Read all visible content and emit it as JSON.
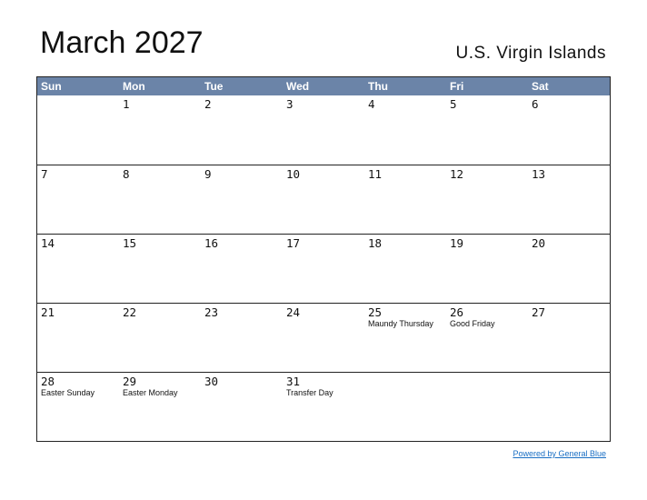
{
  "title": "March 2027",
  "region": "U.S. Virgin Islands",
  "colors": {
    "header_bg": "#6b84a8",
    "header_text": "#ffffff",
    "link": "#1a6fc4"
  },
  "weekdays": [
    "Sun",
    "Mon",
    "Tue",
    "Wed",
    "Thu",
    "Fri",
    "Sat"
  ],
  "weeks": [
    [
      {
        "day": "",
        "holiday": ""
      },
      {
        "day": "1",
        "holiday": ""
      },
      {
        "day": "2",
        "holiday": ""
      },
      {
        "day": "3",
        "holiday": ""
      },
      {
        "day": "4",
        "holiday": ""
      },
      {
        "day": "5",
        "holiday": ""
      },
      {
        "day": "6",
        "holiday": ""
      }
    ],
    [
      {
        "day": "7",
        "holiday": ""
      },
      {
        "day": "8",
        "holiday": ""
      },
      {
        "day": "9",
        "holiday": ""
      },
      {
        "day": "10",
        "holiday": ""
      },
      {
        "day": "11",
        "holiday": ""
      },
      {
        "day": "12",
        "holiday": ""
      },
      {
        "day": "13",
        "holiday": ""
      }
    ],
    [
      {
        "day": "14",
        "holiday": ""
      },
      {
        "day": "15",
        "holiday": ""
      },
      {
        "day": "16",
        "holiday": ""
      },
      {
        "day": "17",
        "holiday": ""
      },
      {
        "day": "18",
        "holiday": ""
      },
      {
        "day": "19",
        "holiday": ""
      },
      {
        "day": "20",
        "holiday": ""
      }
    ],
    [
      {
        "day": "21",
        "holiday": ""
      },
      {
        "day": "22",
        "holiday": ""
      },
      {
        "day": "23",
        "holiday": ""
      },
      {
        "day": "24",
        "holiday": ""
      },
      {
        "day": "25",
        "holiday": "Maundy Thursday"
      },
      {
        "day": "26",
        "holiday": "Good Friday"
      },
      {
        "day": "27",
        "holiday": ""
      }
    ],
    [
      {
        "day": "28",
        "holiday": "Easter Sunday"
      },
      {
        "day": "29",
        "holiday": "Easter Monday"
      },
      {
        "day": "30",
        "holiday": ""
      },
      {
        "day": "31",
        "holiday": "Transfer Day"
      },
      {
        "day": "",
        "holiday": ""
      },
      {
        "day": "",
        "holiday": ""
      },
      {
        "day": "",
        "holiday": ""
      }
    ]
  ],
  "footer_link": "Powered by General Blue"
}
